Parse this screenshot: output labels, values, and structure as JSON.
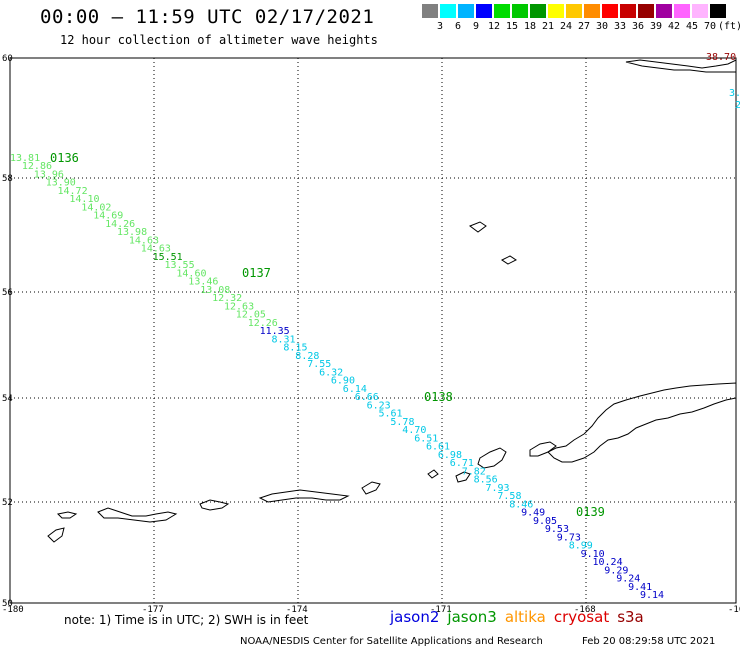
{
  "header": {
    "title": "00:00 – 11:59 UTC 02/17/2021",
    "subtitle": "12 hour collection of altimeter wave heights"
  },
  "legend": {
    "colors": [
      "#808080",
      "#00ffff",
      "#00b4ff",
      "#0000ff",
      "#00dc00",
      "#00c800",
      "#009600",
      "#ffff00",
      "#ffc800",
      "#ff8c00",
      "#ff0000",
      "#c80000",
      "#960000",
      "#a000a0",
      "#ff64ff",
      "#ffb4ff",
      "#000000"
    ],
    "labels": [
      "3",
      "6",
      "9",
      "12",
      "15",
      "18",
      "21",
      "24",
      "27",
      "30",
      "33",
      "36",
      "39",
      "42",
      "45",
      "70"
    ],
    "unit": "(ft)"
  },
  "axes": {
    "x_ticks": [
      "-180",
      "-177",
      "-174",
      "-171",
      "-168",
      "-16"
    ],
    "y_ticks": [
      "60",
      "58",
      "56",
      "54",
      "52",
      "50"
    ]
  },
  "map": {
    "pass_labels": [
      {
        "text": "0136",
        "color": "#009600"
      },
      {
        "text": "0137",
        "color": "#009600"
      },
      {
        "text": "0138",
        "color": "#009600"
      },
      {
        "text": "0139",
        "color": "#009600"
      }
    ],
    "corner_label": {
      "text": "38.70",
      "color": "#960000"
    },
    "edge_fragments": [
      "3.",
      "2"
    ],
    "swh_values": [
      {
        "v": "13.81",
        "c": "#64e664"
      },
      {
        "v": "12.86",
        "c": "#64e664"
      },
      {
        "v": "13.96",
        "c": "#64e664"
      },
      {
        "v": "13.90",
        "c": "#64e664"
      },
      {
        "v": "14.72",
        "c": "#64e664"
      },
      {
        "v": "14.10",
        "c": "#64e664"
      },
      {
        "v": "14.02",
        "c": "#64e664"
      },
      {
        "v": "14.69",
        "c": "#64e664"
      },
      {
        "v": "14.26",
        "c": "#64e664"
      },
      {
        "v": "13.98",
        "c": "#64e664"
      },
      {
        "v": "14.63",
        "c": "#64e664"
      },
      {
        "v": "14.63",
        "c": "#64e664"
      },
      {
        "v": "15.51",
        "c": "#009600"
      },
      {
        "v": "13.55",
        "c": "#64e664"
      },
      {
        "v": "14.60",
        "c": "#64e664"
      },
      {
        "v": "13.46",
        "c": "#64e664"
      },
      {
        "v": "13.08",
        "c": "#64e664"
      },
      {
        "v": "12.32",
        "c": "#64e664"
      },
      {
        "v": "12.63",
        "c": "#64e664"
      },
      {
        "v": "12.05",
        "c": "#64e664"
      },
      {
        "v": "12.26",
        "c": "#64e664"
      },
      {
        "v": "11.35",
        "c": "#0000c8"
      },
      {
        "v": "8.31",
        "c": "#00c8e6"
      },
      {
        "v": "8.15",
        "c": "#00c8e6"
      },
      {
        "v": "8.28",
        "c": "#00c8e6"
      },
      {
        "v": "7.55",
        "c": "#00c8e6"
      },
      {
        "v": "6.32",
        "c": "#00c8e6"
      },
      {
        "v": "6.90",
        "c": "#00c8e6"
      },
      {
        "v": "6.14",
        "c": "#00c8e6"
      },
      {
        "v": "6.66",
        "c": "#00c8e6"
      },
      {
        "v": "6.23",
        "c": "#00c8e6"
      },
      {
        "v": "5.61",
        "c": "#00c8e6"
      },
      {
        "v": "5.78",
        "c": "#00c8e6"
      },
      {
        "v": "4.70",
        "c": "#00c8e6"
      },
      {
        "v": "6.51",
        "c": "#00c8e6"
      },
      {
        "v": "6.61",
        "c": "#00c8e6"
      },
      {
        "v": "6.98",
        "c": "#00c8e6"
      },
      {
        "v": "6.71",
        "c": "#00c8e6"
      },
      {
        "v": "7.82",
        "c": "#00c8e6"
      },
      {
        "v": "8.56",
        "c": "#00c8e6"
      },
      {
        "v": "7.93",
        "c": "#00c8e6"
      },
      {
        "v": "7.58",
        "c": "#00c8e6"
      },
      {
        "v": "8.46",
        "c": "#00c8e6"
      },
      {
        "v": "9.49",
        "c": "#0000c8"
      },
      {
        "v": "9.05",
        "c": "#0000c8"
      },
      {
        "v": "9.53",
        "c": "#0000c8"
      },
      {
        "v": "9.73",
        "c": "#0000c8"
      },
      {
        "v": "8.99",
        "c": "#00c8e6"
      },
      {
        "v": "9.10",
        "c": "#0000c8"
      },
      {
        "v": "10.24",
        "c": "#0000c8"
      },
      {
        "v": "9.29",
        "c": "#0000c8"
      },
      {
        "v": "9.24",
        "c": "#0000c8"
      },
      {
        "v": "9.41",
        "c": "#0000c8"
      },
      {
        "v": "9.14",
        "c": "#0000c8"
      }
    ]
  },
  "footer": {
    "note": "note: 1) Time is in UTC; 2) SWH is in feet",
    "satellites": [
      {
        "name": "jason2",
        "color": "#0000dc"
      },
      {
        "name": "jason3",
        "color": "#009600"
      },
      {
        "name": "altika",
        "color": "#ff9600"
      },
      {
        "name": "cryosat",
        "color": "#dc0000"
      },
      {
        "name": "s3a",
        "color": "#960000"
      }
    ],
    "credits": "NOAA/NESDIS Center for Satellite Applications and Research",
    "timestamp": "Feb 20 08:29:58 UTC 2021"
  }
}
